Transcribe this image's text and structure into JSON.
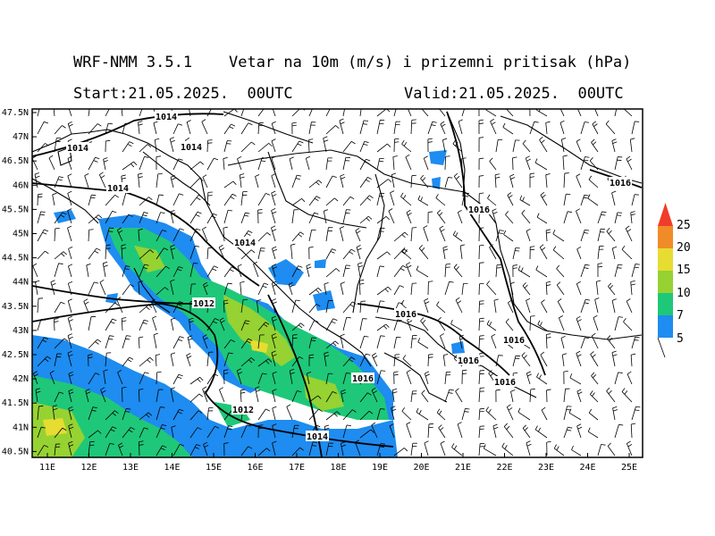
{
  "header": {
    "title": "WRF-NMM 3.5.1    Vetar na 10m (m/s) i prizemni pritisak (hPa)",
    "start": "Start:21.05.2025.  00UTC",
    "valid": "Valid:21.05.2025.  00UTC"
  },
  "map": {
    "lat_labels": [
      "47.5N",
      "47N",
      "46.5N",
      "46N",
      "45.5N",
      "45N",
      "44.5N",
      "44N",
      "43.5N",
      "43N",
      "42.5N",
      "42N",
      "41.5N",
      "41N",
      "40.5N"
    ],
    "lon_labels": [
      "11E",
      "12E",
      "13E",
      "14E",
      "15E",
      "16E",
      "17E",
      "18E",
      "19E",
      "20E",
      "21E",
      "22E",
      "23E",
      "24E",
      "25E"
    ],
    "isobar_labels": [
      "1014",
      "1014",
      "1014",
      "1014",
      "1014",
      "1012",
      "1012",
      "1014",
      "1016",
      "1016",
      "1016",
      "1016",
      "1016",
      "1016",
      "1016"
    ]
  },
  "legend": {
    "values": [
      "25",
      "20",
      "15",
      "10",
      "7",
      "5"
    ],
    "colors": {
      "c25": "#f03c28",
      "c20": "#f08c28",
      "c15": "#e6dc32",
      "c10": "#96d232",
      "c7": "#1ec878",
      "c5": "#1e8cf0"
    }
  }
}
